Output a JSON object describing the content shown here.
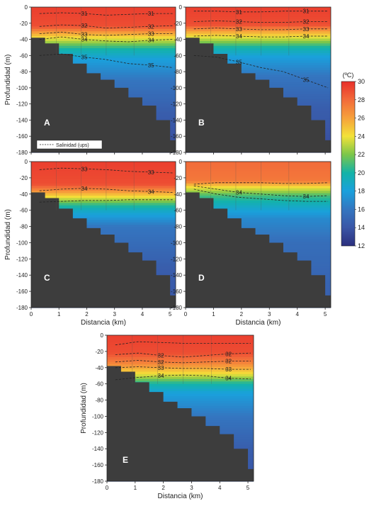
{
  "chart_data": {
    "type": "heatmap",
    "units_note": "Temperature field (colour) with salinity isolines (dashed)",
    "colorbar": {
      "title": "(ºC)",
      "range": [
        12,
        30
      ],
      "ticks": [
        "30",
        "28",
        "26",
        "24",
        "22",
        "20",
        "18",
        "16",
        "14",
        "12"
      ],
      "stops": [
        {
          "value": 30,
          "color": "#e8302b"
        },
        {
          "value": 28,
          "color": "#f26b3a"
        },
        {
          "value": 26,
          "color": "#f6a13b"
        },
        {
          "value": 24,
          "color": "#f3e239"
        },
        {
          "value": 22,
          "color": "#7cc64a"
        },
        {
          "value": 20,
          "color": "#13b3a8"
        },
        {
          "value": 18,
          "color": "#1aa0dc"
        },
        {
          "value": 16,
          "color": "#3476c0"
        },
        {
          "value": 14,
          "color": "#3a56a6"
        },
        {
          "value": 12,
          "color": "#2b2f7e"
        }
      ]
    },
    "x_axis": {
      "label": "Distancia (km)",
      "range": [
        0,
        5.2
      ],
      "ticks": [
        "0",
        "1",
        "2",
        "3",
        "4",
        "5"
      ]
    },
    "y_axis": {
      "label": "Profundidad (m)",
      "range": [
        -180,
        0
      ],
      "ticks": [
        "0",
        "-20",
        "-40",
        "-60",
        "-80",
        "-100",
        "-120",
        "-140",
        "-160",
        "-180"
      ]
    },
    "bathymetry_depth_m": [
      {
        "x": 0.0,
        "depth": 38
      },
      {
        "x": 0.5,
        "depth": 45
      },
      {
        "x": 1.0,
        "depth": 58
      },
      {
        "x": 1.5,
        "depth": 70
      },
      {
        "x": 2.0,
        "depth": 82
      },
      {
        "x": 2.5,
        "depth": 90
      },
      {
        "x": 3.0,
        "depth": 100
      },
      {
        "x": 3.5,
        "depth": 112
      },
      {
        "x": 4.0,
        "depth": 122
      },
      {
        "x": 4.5,
        "depth": 140
      },
      {
        "x": 5.0,
        "depth": 165
      },
      {
        "x": 5.2,
        "depth": 180
      }
    ],
    "panels": [
      {
        "label": "A",
        "legend_text": "Salinidad (ups)",
        "show_xticks": false,
        "temperature_profile": [
          {
            "depth": 0,
            "temp": 29.5
          },
          {
            "depth": 24,
            "temp": 29
          },
          {
            "depth": 32,
            "temp": 26
          },
          {
            "depth": 42,
            "temp": 23
          },
          {
            "depth": 52,
            "temp": 20
          },
          {
            "depth": 65,
            "temp": 18
          },
          {
            "depth": 90,
            "temp": 16
          },
          {
            "depth": 130,
            "temp": 14.5
          },
          {
            "depth": 180,
            "temp": 13.5
          }
        ],
        "salinity_isolines": [
          {
            "value": "31",
            "depths": [
              8,
              7,
              8,
              10,
              9,
              8,
              8
            ]
          },
          {
            "value": "32",
            "depths": [
              24,
              22,
              23,
              26,
              25,
              24,
              23
            ]
          },
          {
            "value": "33",
            "depths": [
              33,
              31,
              34,
              35,
              34,
              33,
              33
            ]
          },
          {
            "value": "34",
            "depths": [
              40,
              37,
              40,
              42,
              43,
              41,
              40
            ]
          },
          {
            "value": "35",
            "depths": [
              60,
              58,
              62,
              65,
              70,
              72,
              75
            ]
          }
        ]
      },
      {
        "label": "B",
        "legend_text": "",
        "show_xticks": false,
        "temperature_profile": [
          {
            "depth": 0,
            "temp": 29.5
          },
          {
            "depth": 22,
            "temp": 29
          },
          {
            "depth": 30,
            "temp": 26
          },
          {
            "depth": 40,
            "temp": 23
          },
          {
            "depth": 50,
            "temp": 20
          },
          {
            "depth": 62,
            "temp": 18
          },
          {
            "depth": 85,
            "temp": 16
          },
          {
            "depth": 125,
            "temp": 14.5
          },
          {
            "depth": 180,
            "temp": 13.5
          }
        ],
        "salinity_isolines": [
          {
            "value": "31",
            "depths": [
              5,
              5,
              6,
              6,
              5,
              5,
              5
            ]
          },
          {
            "value": "32",
            "depths": [
              18,
              17,
              18,
              19,
              19,
              18,
              18
            ]
          },
          {
            "value": "33",
            "depths": [
              27,
              26,
              27,
              28,
              28,
              27,
              27
            ]
          },
          {
            "value": "34",
            "depths": [
              36,
              35,
              36,
              37,
              37,
              36,
              36
            ]
          },
          {
            "value": "35",
            "depths": [
              60,
              62,
              68,
              75,
              80,
              90,
              100
            ]
          }
        ]
      },
      {
        "label": "C",
        "legend_text": "",
        "show_xticks": true,
        "temperature_profile": [
          {
            "depth": 0,
            "temp": 29.5
          },
          {
            "depth": 28,
            "temp": 29
          },
          {
            "depth": 35,
            "temp": 27
          },
          {
            "depth": 44,
            "temp": 24
          },
          {
            "depth": 52,
            "temp": 21
          },
          {
            "depth": 60,
            "temp": 19
          },
          {
            "depth": 80,
            "temp": 16
          },
          {
            "depth": 130,
            "temp": 14.5
          },
          {
            "depth": 180,
            "temp": 14
          }
        ],
        "salinity_isolines": [
          {
            "value": "33",
            "depths": [
              10,
              8,
              9,
              10,
              12,
              13,
              14
            ]
          },
          {
            "value": "34",
            "depths": [
              36,
              34,
              33,
              34,
              36,
              37,
              38
            ]
          },
          {
            "value": "",
            "depths": [
              50,
              49,
              48,
              48,
              47,
              47,
              47
            ]
          }
        ]
      },
      {
        "label": "D",
        "legend_text": "",
        "show_xticks": true,
        "temperature_profile": [
          {
            "depth": 0,
            "temp": 28
          },
          {
            "depth": 24,
            "temp": 27.5
          },
          {
            "depth": 32,
            "temp": 24
          },
          {
            "depth": 42,
            "temp": 21
          },
          {
            "depth": 55,
            "temp": 19
          },
          {
            "depth": 70,
            "temp": 17
          },
          {
            "depth": 100,
            "temp": 15.5
          },
          {
            "depth": 180,
            "temp": 14.5
          }
        ],
        "salinity_isolines": [
          {
            "value": "",
            "depths": [
              28,
              26,
              26,
              26,
              27,
              27,
              26
            ]
          },
          {
            "value": "34",
            "depths": [
              30,
              34,
              38,
              40,
              42,
              43,
              42
            ]
          },
          {
            "value": "",
            "depths": [
              34,
              40,
              44,
              46,
              48,
              49,
              49
            ]
          }
        ]
      },
      {
        "label": "E",
        "legend_text": "",
        "show_xticks": true,
        "temperature_profile": [
          {
            "depth": 0,
            "temp": 29.5
          },
          {
            "depth": 22,
            "temp": 29
          },
          {
            "depth": 35,
            "temp": 27
          },
          {
            "depth": 48,
            "temp": 24
          },
          {
            "depth": 60,
            "temp": 20
          },
          {
            "depth": 72,
            "temp": 18
          },
          {
            "depth": 100,
            "temp": 16
          },
          {
            "depth": 140,
            "temp": 14.5
          },
          {
            "depth": 180,
            "temp": 14
          }
        ],
        "salinity_isolines": [
          {
            "value": "",
            "depths": [
              12,
              8,
              9,
              10,
              10,
              10,
              10
            ]
          },
          {
            "value": "32",
            "depths": [
              24,
              22,
              25,
              27,
              25,
              23,
              22
            ]
          },
          {
            "value": "32",
            "depths": [
              33,
              31,
              33,
              34,
              33,
              32,
              32
            ]
          },
          {
            "value": "33",
            "depths": [
              40,
              39,
              40,
              41,
              41,
              42,
              42
            ]
          },
          {
            "value": "34",
            "depths": [
              55,
              52,
              50,
              49,
              50,
              53,
              54
            ]
          }
        ]
      }
    ]
  }
}
